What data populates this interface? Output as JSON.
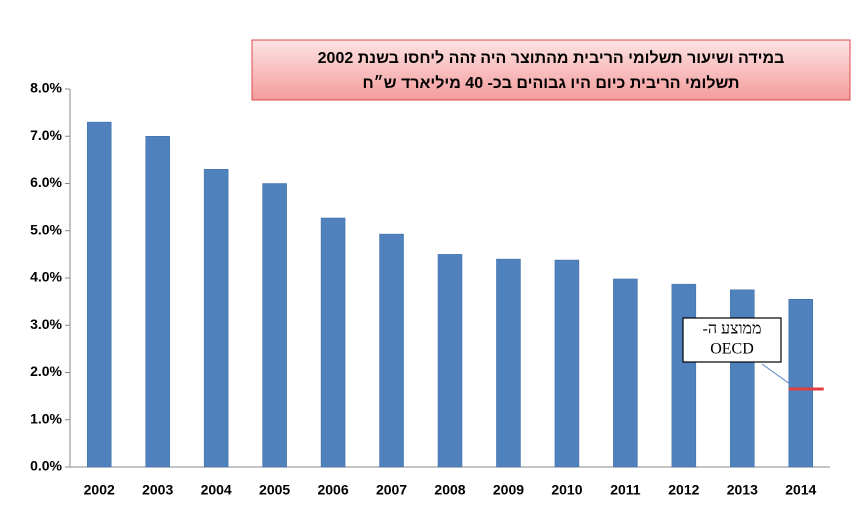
{
  "chart_data": {
    "type": "bar",
    "title_lines": [
      "במידה ושיעור תשלומי הריבית מהתוצר היה זהה ליחסו בשנת  2002",
      "תשלומי הריבית כיום היו גבוהים בכ- 40 מיליארד ש״ח"
    ],
    "categories": [
      "2002",
      "2003",
      "2004",
      "2005",
      "2006",
      "2007",
      "2008",
      "2009",
      "2010",
      "2011",
      "2012",
      "2013",
      "2014"
    ],
    "values": [
      7.3,
      7.0,
      6.3,
      6.0,
      5.27,
      4.93,
      4.5,
      4.4,
      4.38,
      3.98,
      3.87,
      3.75,
      3.55
    ],
    "color": "#4f81bd",
    "ylim": [
      0,
      8
    ],
    "yticks": [
      {
        "value": 0,
        "label": "0.0%"
      },
      {
        "value": 1,
        "label": "1.0%"
      },
      {
        "value": 2,
        "label": "2.0%"
      },
      {
        "value": 3,
        "label": "3.0%"
      },
      {
        "value": 4,
        "label": "4.0%"
      },
      {
        "value": 5,
        "label": "5.0%"
      },
      {
        "value": 6,
        "label": "6.0%"
      },
      {
        "value": 7,
        "label": "7.0%"
      },
      {
        "value": 8,
        "label": "8.0%"
      }
    ],
    "grid": false,
    "annotation": {
      "lines": [
        "ממוצע ה-",
        "OECD"
      ],
      "value": 1.65,
      "color": "#e04040"
    }
  }
}
